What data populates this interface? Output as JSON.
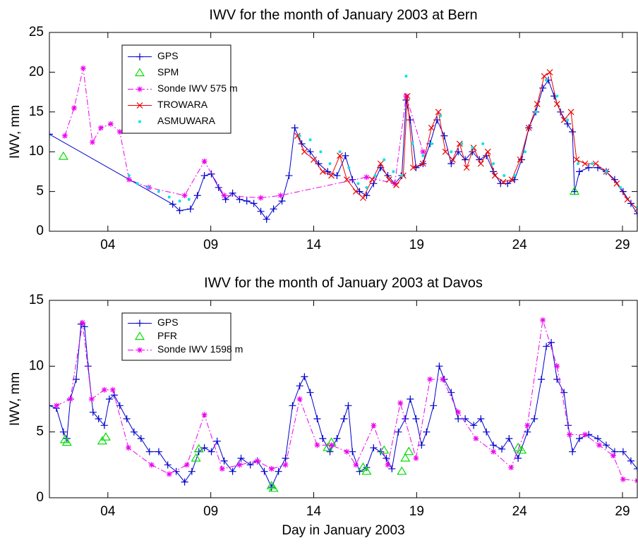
{
  "chart_data": [
    {
      "type": "line",
      "title": "IWV for the month of January 2003 at Bern",
      "y_label": "IWV, mm",
      "xlim": [
        1.16,
        29.72
      ],
      "ylim": [
        0,
        25
      ],
      "xticks": [
        {
          "value": 4,
          "label": "04"
        },
        {
          "value": 9,
          "label": "09"
        },
        14,
        19,
        24,
        29
      ],
      "yticks": [
        0,
        5,
        10,
        15,
        20,
        25
      ],
      "legend": "upper left",
      "series": [
        {
          "name": "GPS",
          "color": "#0000cc",
          "line_style": "solid",
          "marker": "plus",
          "x": [
            1.16,
            7.15,
            7.49,
            8.01,
            8.35,
            8.69,
            9.03,
            9.38,
            9.72,
            10.06,
            10.4,
            10.75,
            11.09,
            11.43,
            11.71,
            12.05,
            12.46,
            12.8,
            13.08,
            13.42,
            13.83,
            14.24,
            14.68,
            15.13,
            15.54,
            15.88,
            16.23,
            16.57,
            16.91,
            17.25,
            17.6,
            17.94,
            18.28,
            18.49,
            18.69,
            18.97,
            19.31,
            19.65,
            19.99,
            20.34,
            20.68,
            21.02,
            21.36,
            21.71,
            22.05,
            22.39,
            22.73,
            23.08,
            23.42,
            23.76,
            24.1,
            24.45,
            24.79,
            25.13,
            25.4,
            25.68,
            25.99,
            26.33,
            26.57,
            26.67,
            26.91,
            27.36,
            27.8,
            28.21,
            28.62,
            29.03,
            29.41,
            29.72
          ],
          "values": [
            12.2,
            3.4,
            2.6,
            2.8,
            4.5,
            7.0,
            7.2,
            5.5,
            4.0,
            4.8,
            4.0,
            3.8,
            3.5,
            2.5,
            1.5,
            2.8,
            3.8,
            7.0,
            13.0,
            11.0,
            10.0,
            8.5,
            7.5,
            7.0,
            9.5,
            6.5,
            5.0,
            4.5,
            6.0,
            8.0,
            7.0,
            6.0,
            7.0,
            16.5,
            14.0,
            8.0,
            8.5,
            11.0,
            14.0,
            12.0,
            8.5,
            10.0,
            9.0,
            10.0,
            9.0,
            9.5,
            7.5,
            6.0,
            6.0,
            6.5,
            9.0,
            13.0,
            15.0,
            18.0,
            19.0,
            17.0,
            15.0,
            13.5,
            12.5,
            5.0,
            7.5,
            8.0,
            8.0,
            7.5,
            6.5,
            5.0,
            3.5,
            2.2
          ]
        },
        {
          "name": "SPM",
          "color": "#00dd00",
          "line_style": "none",
          "marker": "triangle",
          "x": [
            1.84,
            26.67
          ],
          "values": [
            9.4,
            5.0
          ]
        },
        {
          "name": "Sonde IWV 575 m",
          "color": "#ee00ee",
          "line_style": "dashdot",
          "marker": "star",
          "x": [
            1.91,
            2.36,
            2.8,
            3.25,
            3.66,
            4.14,
            4.58,
            5.03,
            5.99,
            7.73,
            8.69,
            9.65,
            11.43,
            12.39,
            16.57,
            17.94,
            18.49,
            19.31
          ],
          "values": [
            12.0,
            15.5,
            20.5,
            11.2,
            13.0,
            13.5,
            12.5,
            6.5,
            5.5,
            4.5,
            8.8,
            4.5,
            4.2,
            4.5,
            6.8,
            6.0,
            17.0,
            10.0
          ]
        },
        {
          "name": "TROWARA",
          "color": "#ee0000",
          "line_style": "solid",
          "marker": "x",
          "x": [
            13.21,
            13.55,
            14.0,
            14.44,
            14.86,
            15.27,
            15.61,
            16.05,
            16.4,
            16.84,
            17.25,
            17.66,
            18.01,
            18.35,
            18.55,
            18.83,
            19.31,
            19.72,
            20.06,
            20.4,
            20.75,
            21.09,
            21.43,
            21.77,
            22.12,
            22.46,
            22.8,
            23.21,
            23.62,
            24.03,
            24.45,
            24.86,
            25.2,
            25.47,
            25.82,
            26.16,
            26.5,
            26.77,
            27.18,
            27.7,
            28.21,
            28.72,
            29.24,
            29.72
          ],
          "values": [
            12,
            10,
            9,
            7.5,
            7,
            9.5,
            6.5,
            5,
            4.2,
            6.5,
            8.5,
            6.5,
            5.8,
            7,
            17,
            8,
            8.5,
            13,
            15,
            10,
            9,
            11,
            8,
            10.5,
            8.5,
            10,
            7,
            6.2,
            6.5,
            9,
            13,
            16,
            19.5,
            20,
            16,
            14,
            15,
            9,
            8.5,
            8.5,
            7.5,
            6,
            4,
            2.8
          ]
        },
        {
          "name": "ASMUWARA",
          "color": "#00e5e5",
          "line_style": "none",
          "marker": "dot",
          "x": [
            5.03,
            5.44,
            5.95,
            6.47,
            6.98,
            7.49,
            7.94,
            13.32,
            13.83,
            14.34,
            14.79,
            15.27,
            15.71,
            16.16,
            16.57,
            16.98,
            17.42,
            17.87,
            18.28,
            18.49,
            18.79,
            19.31,
            19.72,
            20.16,
            20.68,
            21.19,
            21.71,
            22.22,
            22.73,
            23.25,
            23.76,
            24.27,
            24.79,
            25.3,
            25.82,
            26.33,
            26.84,
            27.53,
            28.21,
            28.9,
            29.72
          ],
          "values": [
            7,
            6,
            5.5,
            5,
            4.3,
            3.8,
            4,
            12,
            11.5,
            10,
            8.5,
            10,
            8,
            6,
            5.5,
            7,
            9,
            7.5,
            7,
            19.5,
            11,
            9.5,
            11,
            14.5,
            10,
            11,
            10.5,
            11,
            8.5,
            7,
            7,
            10,
            15,
            19,
            17,
            14,
            8.5,
            8.5,
            7.5,
            5.5,
            3
          ]
        }
      ]
    },
    {
      "type": "line",
      "title": "IWV for the month of January 2003 at Davos",
      "y_label": "IWV, mm",
      "x_label": "Day in January 2003",
      "xlim": [
        1.16,
        29.72
      ],
      "ylim": [
        0,
        15
      ],
      "xticks": [
        {
          "value": 4,
          "label": "04"
        },
        {
          "value": 9,
          "label": "09"
        },
        14,
        19,
        24,
        29
      ],
      "yticks": [
        0,
        5,
        10,
        15
      ],
      "legend": "upper left",
      "series": [
        {
          "name": "GPS",
          "color": "#0000cc",
          "line_style": "solid",
          "marker": "plus",
          "x": [
            1.16,
            1.5,
            1.84,
            2.01,
            2.18,
            2.46,
            2.7,
            2.87,
            3.04,
            3.28,
            3.55,
            3.83,
            4.07,
            4.31,
            4.58,
            4.92,
            5.27,
            5.61,
            6.02,
            6.47,
            6.91,
            7.32,
            7.73,
            8.08,
            8.42,
            8.69,
            9.03,
            9.31,
            9.65,
            10.06,
            10.47,
            10.92,
            11.26,
            11.6,
            11.95,
            12.29,
            12.63,
            12.97,
            13.32,
            13.55,
            13.83,
            14.17,
            14.44,
            14.79,
            15.13,
            15.47,
            15.68,
            15.88,
            16.23,
            16.57,
            16.91,
            17.25,
            17.53,
            17.8,
            18.11,
            18.45,
            18.69,
            18.97,
            19.24,
            19.48,
            19.82,
            20.1,
            20.34,
            20.68,
            21.02,
            21.36,
            21.77,
            22.12,
            22.39,
            22.73,
            23.14,
            23.49,
            23.93,
            24.38,
            24.72,
            25.06,
            25.3,
            25.54,
            25.82,
            26.16,
            26.36,
            26.57,
            26.91,
            27.36,
            27.8,
            28.21,
            28.62,
            29.03,
            29.41,
            29.72
          ],
          "values": [
            7.0,
            6.8,
            5.0,
            4.5,
            7.5,
            9.0,
            13.2,
            13.0,
            10.0,
            6.5,
            6.0,
            5.5,
            7.5,
            7.8,
            7.0,
            6.0,
            5.0,
            4.5,
            3.5,
            3.5,
            2.5,
            2.0,
            1.2,
            2.0,
            3.5,
            3.8,
            3.5,
            4.3,
            2.8,
            2.0,
            3.0,
            2.5,
            2.8,
            2.0,
            0.8,
            2.0,
            3.0,
            7.0,
            8.5,
            9.2,
            8.0,
            6.0,
            4.5,
            3.5,
            4.5,
            6.0,
            7.0,
            3.5,
            2.0,
            2.3,
            3.8,
            3.5,
            3.0,
            2.2,
            5.0,
            6.0,
            7.5,
            6.0,
            4.0,
            5.0,
            7.0,
            10.0,
            9.0,
            8.0,
            6.0,
            6.0,
            5.5,
            6.0,
            5.0,
            4.0,
            3.7,
            4.5,
            3.0,
            5.0,
            6.0,
            9.0,
            11.5,
            11.8,
            9.0,
            8.0,
            5.5,
            3.5,
            4.5,
            4.8,
            4.5,
            4.0,
            3.5,
            3.5,
            2.8,
            2.2
          ]
        },
        {
          "name": "PFR",
          "color": "#00dd00",
          "line_style": "none",
          "marker": "triangle",
          "x": [
            1.91,
            2.01,
            3.73,
            3.9,
            8.28,
            8.42,
            11.95,
            12.05,
            14.68,
            14.86,
            16.4,
            16.57,
            17.42,
            18.28,
            18.45,
            18.62,
            23.93,
            24.1
          ],
          "values": [
            4.4,
            4.2,
            4.3,
            4.6,
            3.0,
            3.7,
            0.9,
            0.7,
            3.8,
            4.2,
            2.3,
            2.0,
            3.6,
            2.0,
            3.0,
            3.5,
            3.8,
            3.6
          ]
        },
        {
          "name": "Sonde IWV 1598 m",
          "color": "#ee00ee",
          "line_style": "dashdot",
          "marker": "star",
          "x": [
            1.5,
            2.18,
            2.77,
            3.21,
            3.83,
            4.24,
            5.0,
            6.12,
            6.98,
            7.84,
            8.69,
            9.55,
            10.4,
            11.26,
            11.95,
            12.63,
            13.32,
            14.17,
            14.86,
            15.61,
            16.05,
            16.91,
            17.6,
            18.21,
            18.97,
            19.65,
            20.27,
            21.02,
            21.88,
            22.73,
            23.59,
            24.38,
            25.13,
            25.82,
            26.43,
            27.18,
            27.87,
            28.55,
            29.03,
            29.72
          ],
          "values": [
            7.0,
            7.5,
            13.3,
            7.5,
            8.2,
            8.2,
            3.8,
            2.5,
            1.8,
            2.5,
            6.3,
            2.2,
            2.5,
            2.8,
            2.2,
            2.5,
            7.5,
            4.0,
            4.0,
            3.5,
            2.5,
            5.5,
            2.5,
            7.2,
            3.0,
            9.0,
            9.0,
            6.5,
            4.5,
            3.5,
            2.3,
            5.5,
            13.5,
            10.0,
            4.8,
            4.8,
            4.0,
            3.2,
            1.4,
            1.3
          ]
        }
      ]
    }
  ]
}
